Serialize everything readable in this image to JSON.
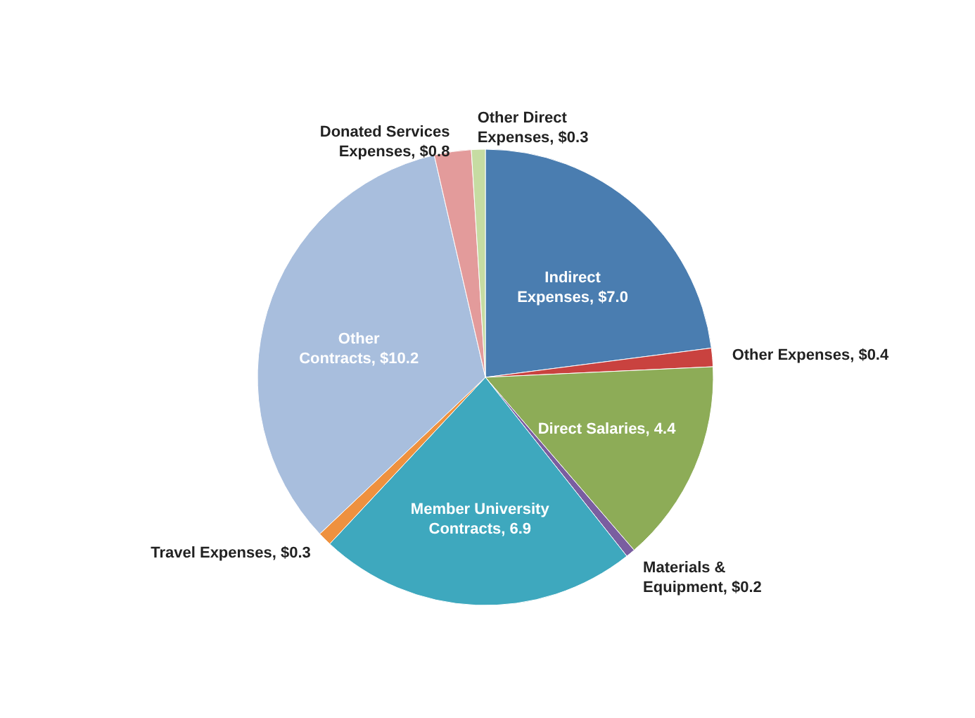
{
  "chart_data": {
    "type": "pie",
    "categories": [
      "Indirect Expenses",
      "Other Expenses",
      "Direct Salaries",
      "Materials & Equipment",
      "Member University Contracts",
      "Travel Expenses",
      "Other Contracts",
      "Donated Services Expenses",
      "Other Direct Expenses"
    ],
    "values": [
      7.0,
      0.4,
      4.4,
      0.2,
      6.9,
      0.3,
      10.2,
      0.8,
      0.3
    ],
    "value_labels": [
      "$7.0",
      "$0.4",
      "4.4",
      "$0.2",
      "6.9",
      "$0.3",
      "$10.2",
      "$0.8",
      "$0.3"
    ],
    "colors": [
      "#4a7db0",
      "#c9423f",
      "#8dac57",
      "#7a5ea0",
      "#3ea8be",
      "#ee913f",
      "#a8bedd",
      "#e39b9b",
      "#c6dca2"
    ]
  }
}
